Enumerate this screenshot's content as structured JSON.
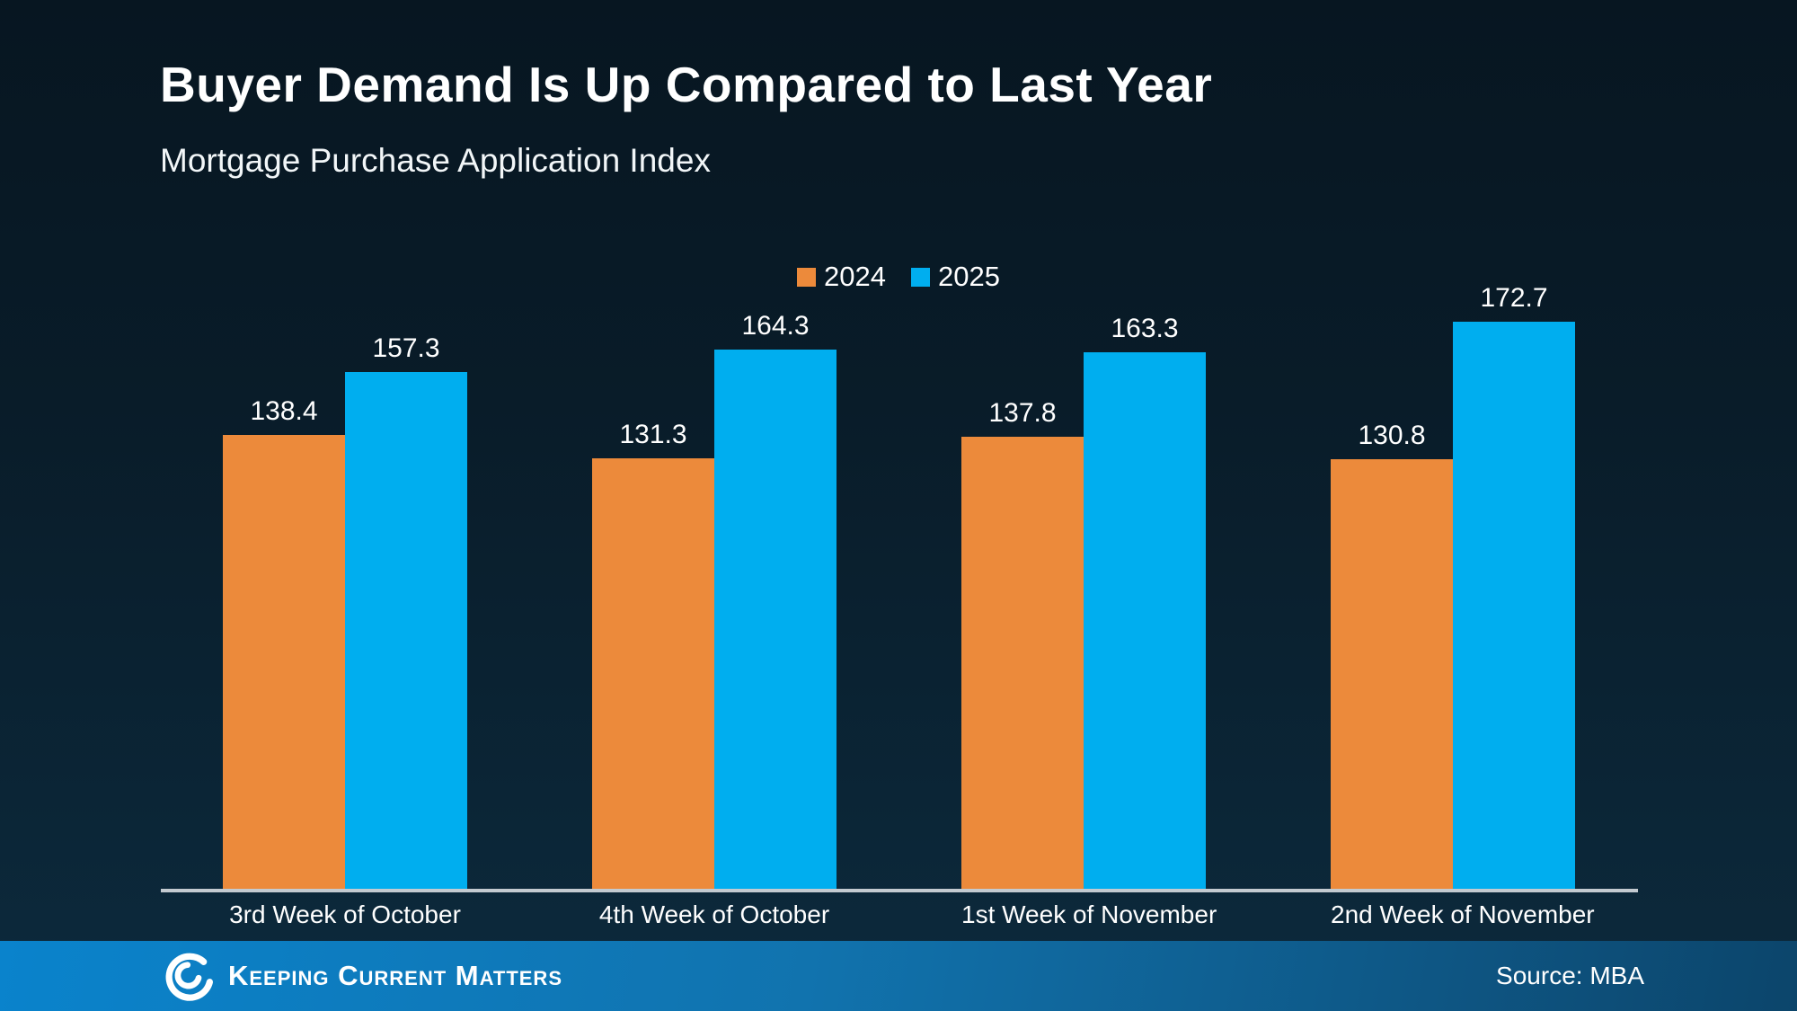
{
  "header": {
    "title": "Buyer Demand Is Up Compared to Last Year",
    "subtitle": "Mortgage Purchase Application Index"
  },
  "chart_data": {
    "type": "bar",
    "title": "Buyer Demand Is Up Compared to Last Year",
    "subtitle": "Mortgage Purchase Application Index",
    "categories": [
      "3rd Week of October",
      "4th Week of October",
      "1st Week of November",
      "2nd Week of November"
    ],
    "series": [
      {
        "name": "2024",
        "color": "#ec8a3b",
        "values": [
          138.4,
          131.3,
          137.8,
          130.8
        ]
      },
      {
        "name": "2025",
        "color": "#00aeef",
        "values": [
          157.3,
          164.3,
          163.3,
          172.7
        ]
      }
    ],
    "ylim": [
      0,
      180
    ],
    "grid": false,
    "legend_position": "top-center",
    "value_labels": true,
    "xlabel": "",
    "ylabel": ""
  },
  "colors": {
    "background_top": "#071621",
    "background_bottom": "#0c2a3d",
    "axis_line": "#c3cad0",
    "footer_left": "#0a83cc",
    "footer_right": "#0c456b",
    "text": "#ffffff"
  },
  "footer": {
    "brand": "Keeping Current Matters",
    "logo": "kcm-spiral-logo",
    "source": "Source: MBA"
  }
}
